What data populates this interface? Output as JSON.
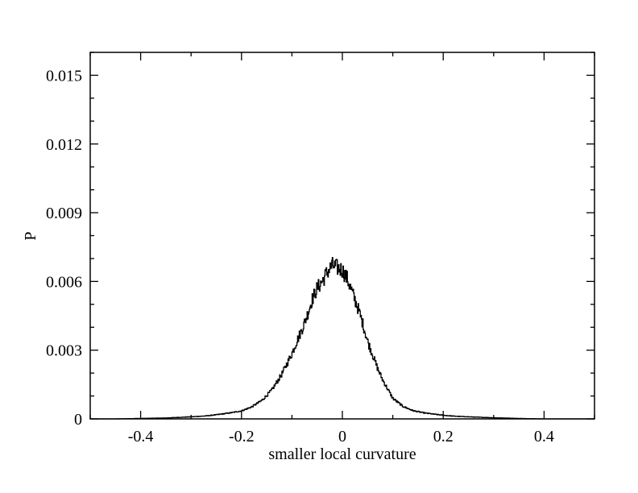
{
  "chart_data": {
    "type": "line",
    "title": "",
    "xlabel": "smaller local curvature",
    "ylabel": "P",
    "xlim": [
      -0.5,
      0.5
    ],
    "ylim": [
      0,
      0.016
    ],
    "x_ticks": [
      -0.4,
      -0.2,
      0,
      0.2,
      0.4
    ],
    "x_tick_labels": [
      "-0.4",
      "-0.2",
      "0",
      "0.2",
      "0.4"
    ],
    "y_ticks": [
      0,
      0.003,
      0.006,
      0.009,
      0.012,
      0.015
    ],
    "y_tick_labels": [
      "0",
      "0.003",
      "0.006",
      "0.009",
      "0.012",
      "0.015"
    ],
    "grid": false,
    "series": [
      {
        "style": "step",
        "color": "#000000",
        "x": [
          -0.5,
          -0.45,
          -0.4,
          -0.35,
          -0.3,
          -0.27,
          -0.25,
          -0.22,
          -0.2,
          -0.18,
          -0.16,
          -0.14,
          -0.12,
          -0.1,
          -0.09,
          -0.08,
          -0.07,
          -0.06,
          -0.05,
          -0.04,
          -0.03,
          -0.02,
          -0.01,
          0,
          0.01,
          0.02,
          0.03,
          0.04,
          0.05,
          0.06,
          0.07,
          0.08,
          0.09,
          0.1,
          0.12,
          0.14,
          0.16,
          0.18,
          0.2,
          0.22,
          0.25,
          0.3,
          0.35,
          0.4,
          0.45,
          0.5
        ],
        "y": [
          0.0,
          0.0,
          2e-05,
          4e-05,
          9e-05,
          0.00013,
          0.00018,
          0.00027,
          0.00035,
          0.00052,
          0.0008,
          0.00125,
          0.00195,
          0.00285,
          0.0034,
          0.0039,
          0.0045,
          0.0052,
          0.0057,
          0.006,
          0.0064,
          0.0067,
          0.0066,
          0.0065,
          0.0061,
          0.0055,
          0.0049,
          0.0042,
          0.0034,
          0.0028,
          0.0022,
          0.0017,
          0.0013,
          0.0009,
          0.00055,
          0.00036,
          0.00027,
          0.00021,
          0.00016,
          0.00012,
          9e-05,
          5e-05,
          2e-05,
          0.0,
          0.0,
          0.0
        ]
      }
    ]
  }
}
